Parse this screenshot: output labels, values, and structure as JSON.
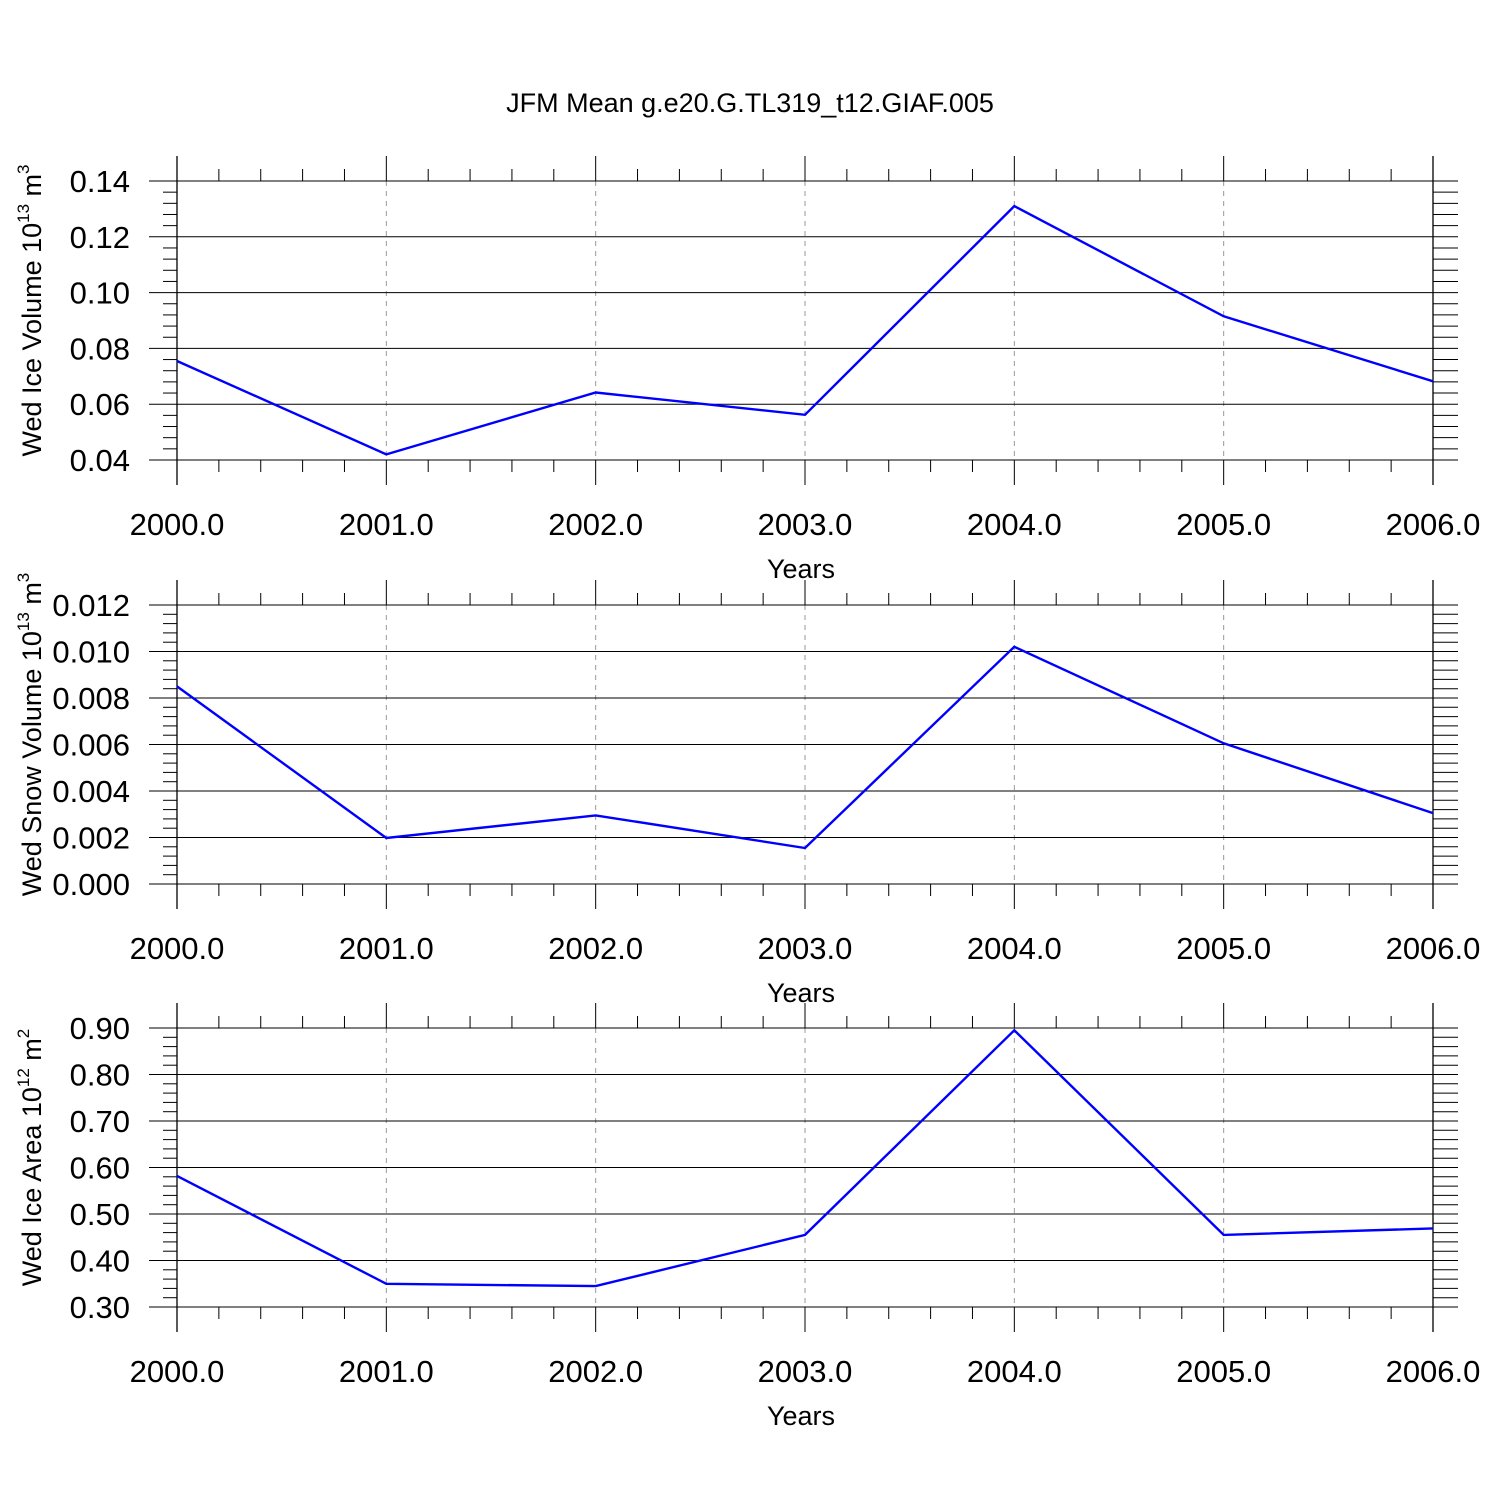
{
  "title": "JFM Mean g.e20.G.TL319_t12.GIAF.005",
  "colors": {
    "line": "#0000ff",
    "axis": "#000000",
    "grid": "#999999"
  },
  "chart_data": [
    {
      "type": "line",
      "x": [
        2000,
        2001,
        2002,
        2003,
        2004,
        2005,
        2006
      ],
      "series": [
        {
          "values": [
            0.0755,
            0.042,
            0.0642,
            0.0562,
            0.131,
            0.0915,
            0.0682
          ]
        }
      ],
      "xlabel": "Years",
      "ylabel": {
        "base": "Wed Ice Volume 10",
        "exp": "13",
        "unit": " m",
        "unit_exp": "3"
      },
      "xlim": [
        2000,
        2006
      ],
      "ylim": [
        0.04,
        0.14
      ],
      "yticks": [
        "0.04",
        "0.06",
        "0.08",
        "0.10",
        "0.12",
        "0.14"
      ],
      "xticks": [
        "2000.0",
        "2001.0",
        "2002.0",
        "2003.0",
        "2004.0",
        "2005.0",
        "2006.0"
      ],
      "grid": "vertical-dashed"
    },
    {
      "type": "line",
      "x": [
        2000,
        2001,
        2002,
        2003,
        2004,
        2005,
        2006
      ],
      "series": [
        {
          "values": [
            0.0085,
            0.00198,
            0.00295,
            0.00155,
            0.0102,
            0.00605,
            0.00305
          ]
        }
      ],
      "xlabel": "Years",
      "ylabel": {
        "base": "Wed Snow Volume 10",
        "exp": "13",
        "unit": " m",
        "unit_exp": "3"
      },
      "xlim": [
        2000,
        2006
      ],
      "ylim": [
        0.0,
        0.012
      ],
      "yticks": [
        "0.000",
        "0.002",
        "0.004",
        "0.006",
        "0.008",
        "0.010",
        "0.012"
      ],
      "xticks": [
        "2000.0",
        "2001.0",
        "2002.0",
        "2003.0",
        "2004.0",
        "2005.0",
        "2006.0"
      ],
      "grid": "vertical-dashed"
    },
    {
      "type": "line",
      "x": [
        2000,
        2001,
        2002,
        2003,
        2004,
        2005,
        2006
      ],
      "series": [
        {
          "values": [
            0.582,
            0.35,
            0.345,
            0.455,
            0.895,
            0.455,
            0.469
          ]
        }
      ],
      "xlabel": "Years",
      "ylabel": {
        "base": "Wed Ice Area 10",
        "exp": "12",
        "unit": " m",
        "unit_exp": "2"
      },
      "xlim": [
        2000,
        2006
      ],
      "ylim": [
        0.3,
        0.9
      ],
      "yticks": [
        "0.30",
        "0.40",
        "0.50",
        "0.60",
        "0.70",
        "0.80",
        "0.90"
      ],
      "xticks": [
        "2000.0",
        "2001.0",
        "2002.0",
        "2003.0",
        "2004.0",
        "2005.0",
        "2006.0"
      ],
      "grid": "vertical-dashed"
    }
  ]
}
